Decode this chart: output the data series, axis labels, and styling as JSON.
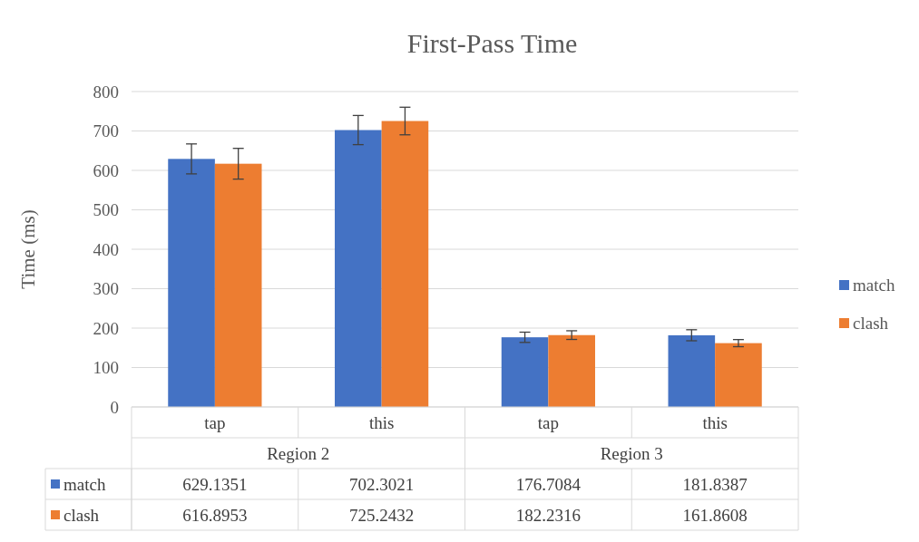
{
  "chart_data": {
    "type": "bar",
    "title": "First-Pass Time",
    "ylabel": "Time (ms)",
    "categories": [
      "tap",
      "this",
      "tap",
      "this"
    ],
    "annotations": [
      "Region 2",
      "Region 3"
    ],
    "series": [
      {
        "name": "match",
        "color": "#4472c4",
        "values": [
          629.1351,
          702.3021,
          176.7084,
          181.8387
        ],
        "errors": [
          38,
          37,
          13,
          14
        ]
      },
      {
        "name": "clash",
        "color": "#ed7d31",
        "values": [
          616.8953,
          725.2432,
          182.2316,
          161.8608
        ],
        "errors": [
          39,
          35,
          11,
          9
        ]
      }
    ],
    "ylim": [
      0,
      800
    ],
    "yticks": [
      0,
      100,
      200,
      300,
      400,
      500,
      600,
      700,
      800
    ],
    "grid": "y",
    "legend": "right",
    "data_labels": true
  }
}
